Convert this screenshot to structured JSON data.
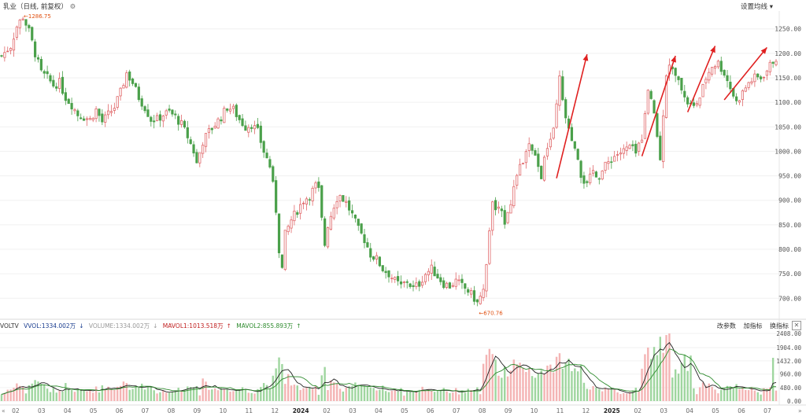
{
  "header": {
    "title": "乳业（日线, 前复权）",
    "settings_icon": "gear-icon",
    "ma_setting_label": "设置均线",
    "ma_setting_caret": "▾"
  },
  "volume_panel": {
    "name": "VOLTV",
    "vvol": "VVOL:1334.002万",
    "vvol_arrow": "↓",
    "volume": "VOLUME:1334.002万",
    "volume_arrow": "↓",
    "mavol1": "MAVOL1:1013.518万",
    "mavol1_arrow": "↑",
    "mavol2": "MAVOL2:855.893万",
    "mavol2_arrow": "↑",
    "tools": [
      "改参数",
      "加指标",
      "换指标"
    ],
    "close_label": "✕"
  },
  "nav": {
    "left": "«",
    "right": "»"
  },
  "colors": {
    "up": "#e0686a",
    "down": "#4aa04a",
    "arrow": "#e02020",
    "vol_ma1": "#222222",
    "vol_ma2": "#2e8b2e",
    "marker": "#e05010"
  },
  "chart_data": {
    "type": "candlestick",
    "price_axis": {
      "min": 670,
      "max": 1280,
      "ticks": [
        1250,
        1200,
        1150,
        1100,
        1050,
        1000,
        950,
        900,
        850,
        800,
        750,
        700
      ]
    },
    "price_tick_labels": [
      "1250.00",
      "1200.00",
      "1150.00",
      "1100.00",
      "1050.00",
      "1000.00",
      "950.00",
      "900.00",
      "850.00",
      "800.00",
      "750.00",
      "700.00"
    ],
    "volume_axis": {
      "min": 0,
      "max": 2408,
      "ticks": [
        2408,
        1904,
        1432,
        960,
        480,
        0
      ]
    },
    "volume_tick_labels": [
      "2408.00",
      "1904.00",
      "1432.00",
      "960.00",
      "480.00",
      "0.00"
    ],
    "x_labels": [
      "02",
      "03",
      "04",
      "05",
      "06",
      "07",
      "08",
      "09",
      "10",
      "11",
      "12",
      "2024",
      "02",
      "03",
      "04",
      "05",
      "06",
      "07",
      "08",
      "09",
      "10",
      "11",
      "12",
      "2025",
      "02",
      "03",
      "04",
      "05",
      "06",
      "07"
    ],
    "high_label": "1286.75",
    "low_label": "670.76",
    "close_path": [
      [
        0,
        1195
      ],
      [
        3,
        1215
      ],
      [
        5,
        1255
      ],
      [
        7,
        1275
      ],
      [
        9,
        1245
      ],
      [
        11,
        1200
      ],
      [
        13,
        1160
      ],
      [
        15,
        1150
      ],
      [
        17,
        1135
      ],
      [
        19,
        1140
      ],
      [
        21,
        1110
      ],
      [
        23,
        1095
      ],
      [
        25,
        1075
      ],
      [
        27,
        1070
      ],
      [
        29,
        1065
      ],
      [
        31,
        1085
      ],
      [
        33,
        1060
      ],
      [
        35,
        1075
      ],
      [
        37,
        1090
      ],
      [
        39,
        1120
      ],
      [
        41,
        1160
      ],
      [
        43,
        1140
      ],
      [
        45,
        1110
      ],
      [
        47,
        1090
      ],
      [
        49,
        1065
      ],
      [
        51,
        1065
      ],
      [
        53,
        1075
      ],
      [
        55,
        1080
      ],
      [
        57,
        1070
      ],
      [
        59,
        1055
      ],
      [
        61,
        1030
      ],
      [
        63,
        1000
      ],
      [
        64,
        975
      ],
      [
        66,
        1020
      ],
      [
        68,
        1040
      ],
      [
        70,
        1055
      ],
      [
        72,
        1070
      ],
      [
        74,
        1090
      ],
      [
        76,
        1085
      ],
      [
        78,
        1065
      ],
      [
        80,
        1050
      ],
      [
        82,
        1055
      ],
      [
        84,
        1040
      ],
      [
        86,
        1000
      ],
      [
        88,
        970
      ],
      [
        89,
        930
      ],
      [
        90,
        880
      ],
      [
        91,
        800
      ],
      [
        92,
        760
      ],
      [
        93,
        830
      ],
      [
        95,
        860
      ],
      [
        97,
        880
      ],
      [
        99,
        900
      ],
      [
        101,
        910
      ],
      [
        103,
        930
      ],
      [
        104,
        920
      ],
      [
        105,
        860
      ],
      [
        106,
        810
      ],
      [
        107,
        850
      ],
      [
        109,
        890
      ],
      [
        110,
        905
      ],
      [
        111,
        910
      ],
      [
        113,
        895
      ],
      [
        115,
        870
      ],
      [
        117,
        840
      ],
      [
        119,
        820
      ],
      [
        121,
        790
      ],
      [
        123,
        780
      ],
      [
        125,
        760
      ],
      [
        127,
        750
      ],
      [
        129,
        735
      ],
      [
        131,
        725
      ],
      [
        133,
        735
      ],
      [
        135,
        720
      ],
      [
        137,
        730
      ],
      [
        139,
        750
      ],
      [
        141,
        760
      ],
      [
        143,
        745
      ],
      [
        145,
        730
      ],
      [
        147,
        725
      ],
      [
        149,
        735
      ],
      [
        151,
        725
      ],
      [
        153,
        715
      ],
      [
        155,
        700
      ],
      [
        156,
        690
      ],
      [
        158,
        715
      ],
      [
        159,
        770
      ],
      [
        160,
        840
      ],
      [
        161,
        890
      ],
      [
        163,
        880
      ],
      [
        165,
        860
      ],
      [
        167,
        900
      ],
      [
        169,
        950
      ],
      [
        171,
        980
      ],
      [
        173,
        1010
      ],
      [
        175,
        985
      ],
      [
        177,
        950
      ],
      [
        179,
        1010
      ],
      [
        181,
        1040
      ],
      [
        182,
        1090
      ],
      [
        183,
        1150
      ],
      [
        184,
        1100
      ],
      [
        186,
        1040
      ],
      [
        188,
        1000
      ],
      [
        190,
        950
      ],
      [
        192,
        930
      ],
      [
        194,
        960
      ],
      [
        196,
        950
      ],
      [
        198,
        970
      ],
      [
        200,
        985
      ],
      [
        202,
        995
      ],
      [
        204,
        1000
      ],
      [
        206,
        1010
      ],
      [
        208,
        995
      ],
      [
        210,
        1030
      ],
      [
        212,
        1120
      ],
      [
        214,
        1080
      ],
      [
        215,
        1030
      ],
      [
        216,
        980
      ],
      [
        217,
        1080
      ],
      [
        218,
        1160
      ],
      [
        219,
        1180
      ],
      [
        220,
        1165
      ],
      [
        221,
        1150
      ],
      [
        223,
        1130
      ],
      [
        225,
        1100
      ],
      [
        227,
        1090
      ],
      [
        229,
        1110
      ],
      [
        231,
        1150
      ],
      [
        233,
        1175
      ],
      [
        235,
        1180
      ],
      [
        237,
        1160
      ],
      [
        239,
        1130
      ],
      [
        241,
        1100
      ],
      [
        243,
        1120
      ],
      [
        245,
        1140
      ],
      [
        247,
        1150
      ],
      [
        249,
        1150
      ],
      [
        251,
        1165
      ],
      [
        252,
        1175
      ],
      [
        253,
        1185
      ],
      [
        254,
        1190
      ]
    ],
    "trend_arrows": [
      [
        182,
        945,
        192,
        1198
      ],
      [
        210,
        990,
        221,
        1195
      ],
      [
        225,
        1080,
        234,
        1215
      ],
      [
        237,
        1105,
        251,
        1212
      ]
    ]
  }
}
